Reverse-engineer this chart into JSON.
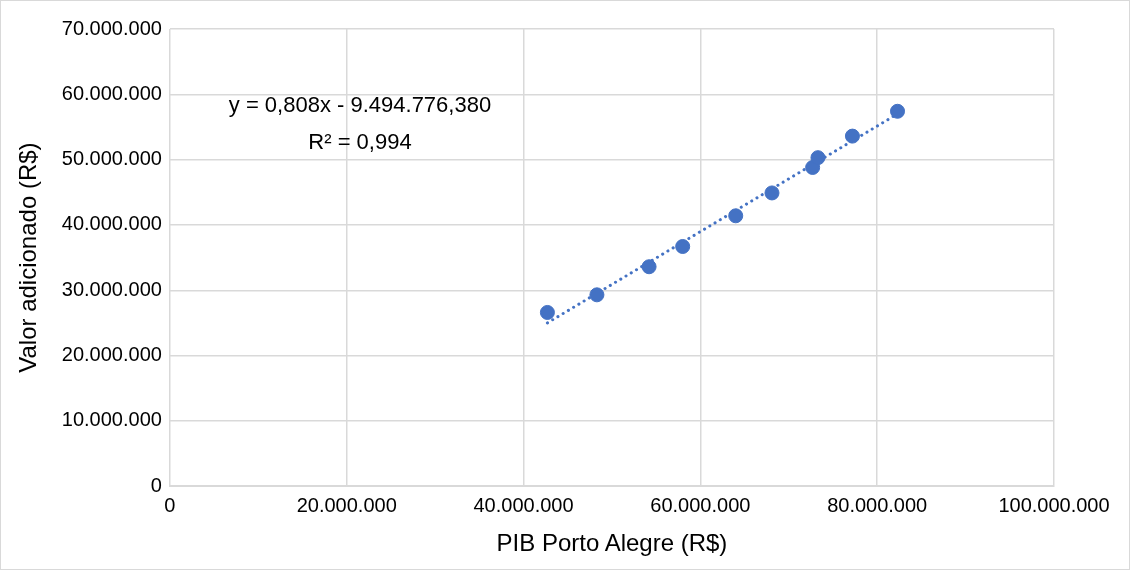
{
  "chart_data": {
    "type": "scatter",
    "xlabel": "PIB Porto Alegre (R$)",
    "ylabel": "Valor adicionado (R$)",
    "x": [
      42700000,
      48300000,
      54200000,
      58000000,
      64000000,
      68100000,
      72700000,
      73300000,
      77200000,
      82300000
    ],
    "series": [
      {
        "color": "#4472c4",
        "marker": "circle",
        "values": [
          26600000,
          29300000,
          33600000,
          36700000,
          41400000,
          44900000,
          48800000,
          50300000,
          53600000,
          57400000
        ]
      },
      {
        "type": "line",
        "color": "#4472c4",
        "line_style": "dotted",
        "marker": "none",
        "x": [
          42700000,
          82300000
        ],
        "values": [
          25000000,
          57000000
        ]
      }
    ],
    "xlim": [
      0,
      100000000
    ],
    "ylim": [
      0,
      70000000
    ],
    "xticks": [
      0,
      {
        "value": 20000000,
        "label": "20.000.000"
      },
      {
        "value": 40000000,
        "label": "40.000.000"
      },
      {
        "value": 60000000,
        "label": "60.000.000"
      },
      {
        "value": 80000000,
        "label": "80.000.000"
      },
      {
        "value": 100000000,
        "label": "100.000.000"
      }
    ],
    "yticks": [
      0,
      {
        "value": 10000000,
        "label": "10.000.000"
      },
      {
        "value": 20000000,
        "label": "20.000.000"
      },
      {
        "value": 30000000,
        "label": "30.000.000"
      },
      {
        "value": 40000000,
        "label": "40.000.000"
      },
      {
        "value": 50000000,
        "label": "50.000.000"
      },
      {
        "value": 60000000,
        "label": "60.000.000"
      },
      {
        "value": 70000000,
        "label": "70.000.000"
      }
    ],
    "annotations": [
      "y = 0,808x - 9.494.776,380",
      "R² = 0,994"
    ],
    "grid": true,
    "legend": false
  }
}
